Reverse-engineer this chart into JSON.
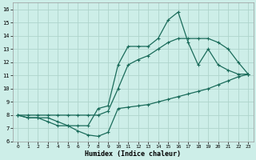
{
  "xlabel": "Humidex (Indice chaleur)",
  "background_color": "#cdeee8",
  "grid_color": "#aed4cc",
  "line_color": "#1a6b5a",
  "xlim": [
    -0.5,
    23.5
  ],
  "ylim": [
    6,
    16.5
  ],
  "xticks": [
    0,
    1,
    2,
    3,
    4,
    5,
    6,
    7,
    8,
    9,
    10,
    11,
    12,
    13,
    14,
    15,
    16,
    17,
    18,
    19,
    20,
    21,
    22,
    23
  ],
  "yticks": [
    6,
    7,
    8,
    9,
    10,
    11,
    12,
    13,
    14,
    15,
    16
  ],
  "line_min_x": [
    0,
    1,
    2,
    3,
    4,
    5,
    6,
    7,
    8,
    9,
    10,
    11,
    12,
    13,
    14,
    15,
    16,
    17,
    18,
    19,
    20,
    21,
    22,
    23
  ],
  "line_min_y": [
    8.0,
    7.8,
    7.8,
    7.5,
    7.2,
    7.2,
    6.8,
    6.5,
    6.4,
    6.7,
    8.5,
    8.6,
    8.7,
    8.8,
    9.0,
    9.2,
    9.4,
    9.6,
    9.8,
    10.0,
    10.3,
    10.6,
    10.9,
    11.1
  ],
  "line_mid_x": [
    0,
    1,
    2,
    3,
    4,
    5,
    6,
    7,
    8,
    9,
    10,
    11,
    12,
    13,
    14,
    15,
    16,
    17,
    18,
    19,
    20,
    21,
    22,
    23
  ],
  "line_mid_y": [
    8.0,
    8.0,
    8.0,
    8.0,
    8.0,
    8.0,
    8.0,
    8.0,
    8.0,
    8.3,
    10.0,
    11.8,
    12.2,
    12.5,
    13.0,
    13.5,
    13.8,
    13.8,
    13.8,
    13.8,
    13.5,
    13.0,
    12.0,
    11.1
  ],
  "line_max_x": [
    0,
    1,
    2,
    3,
    4,
    5,
    6,
    7,
    8,
    9,
    10,
    11,
    12,
    13,
    14,
    15,
    16,
    17,
    18,
    19,
    20,
    21,
    22,
    23
  ],
  "line_max_y": [
    8.0,
    7.8,
    7.8,
    7.8,
    7.5,
    7.2,
    7.2,
    7.2,
    8.5,
    8.7,
    11.8,
    13.2,
    13.2,
    13.2,
    13.8,
    15.2,
    15.8,
    13.5,
    11.8,
    13.0,
    11.8,
    11.4,
    11.1,
    11.1
  ],
  "marker_size": 2.5,
  "linewidth": 0.9
}
